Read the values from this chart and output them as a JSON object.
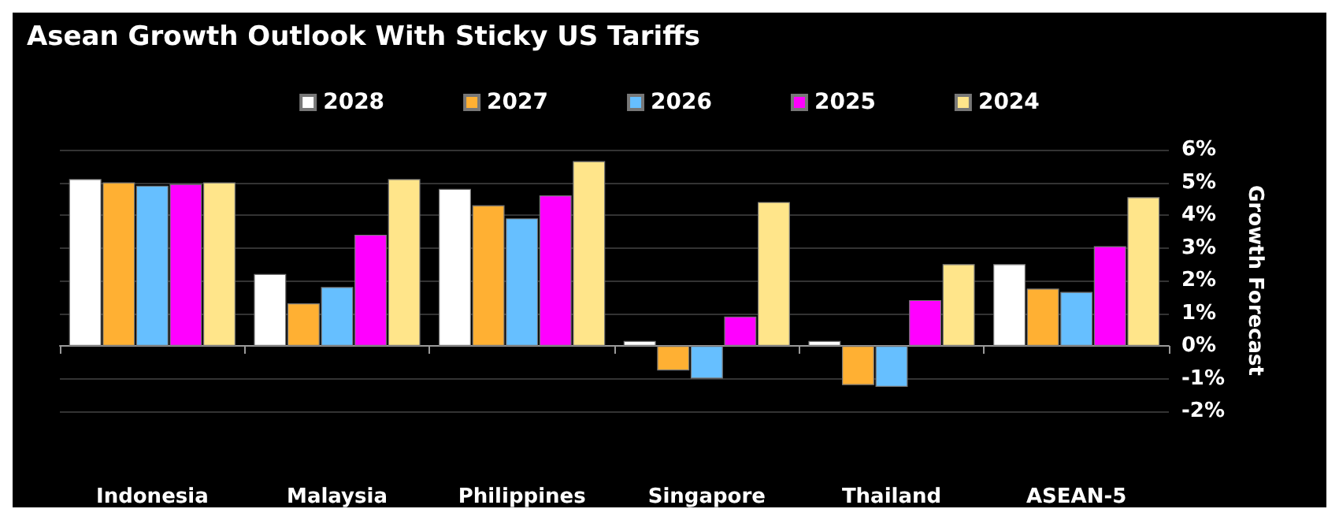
{
  "chart_data": {
    "type": "bar",
    "title": "Asean Growth Outlook With Sticky US Tariffs",
    "ylabel": "Growth Forecast",
    "categories": [
      "Indonesia",
      "Malaysia",
      "Philippines",
      "Singapore",
      "Thailand",
      "ASEAN-5"
    ],
    "series": [
      {
        "name": "2028",
        "color": "#ffffff",
        "values": [
          5.1,
          2.2,
          4.8,
          0.15,
          0.15,
          2.5
        ]
      },
      {
        "name": "2027",
        "color": "#ffb033",
        "values": [
          5.0,
          1.3,
          4.3,
          -0.75,
          -1.2,
          1.75
        ]
      },
      {
        "name": "2026",
        "color": "#66bfff",
        "values": [
          4.9,
          1.8,
          3.9,
          -1.0,
          -1.25,
          1.65
        ]
      },
      {
        "name": "2025",
        "color": "#ff00ff",
        "values": [
          4.95,
          3.4,
          4.6,
          0.9,
          1.4,
          3.05
        ]
      },
      {
        "name": "2024",
        "color": "#ffe58a",
        "values": [
          5.0,
          5.1,
          5.65,
          4.4,
          2.5,
          4.55
        ]
      }
    ],
    "ylim": [
      -2,
      6
    ],
    "yticks": [
      {
        "value": -2,
        "label": "-2%"
      },
      {
        "value": -1,
        "label": "-1%"
      },
      {
        "value": 0,
        "label": "0%"
      },
      {
        "value": 1,
        "label": "1%"
      },
      {
        "value": 2,
        "label": "2%"
      },
      {
        "value": 3,
        "label": "3%"
      },
      {
        "value": 4,
        "label": "4%"
      },
      {
        "value": 5,
        "label": "5%"
      },
      {
        "value": 6,
        "label": "6%"
      }
    ],
    "grid": "y",
    "legend": "top"
  }
}
